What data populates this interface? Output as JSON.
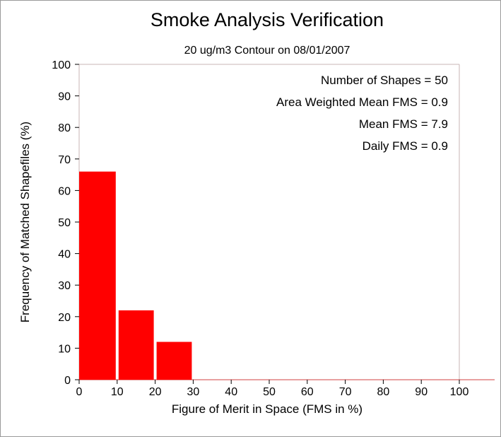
{
  "chart_data": {
    "type": "bar",
    "title": "Smoke Analysis Verification",
    "subtitle": "20 ug/m3 Contour on 08/01/2007",
    "xlabel": "Figure of Merit in Space (FMS in %)",
    "ylabel": "Frequency of Matched Shapefiles (%)",
    "xlim": [
      0,
      100
    ],
    "ylim": [
      0,
      100
    ],
    "x_ticks": [
      "0",
      "10",
      "20",
      "30",
      "40",
      "50",
      "60",
      "70",
      "80",
      "90",
      "100"
    ],
    "y_ticks": [
      "0",
      "10",
      "20",
      "30",
      "40",
      "50",
      "60",
      "70",
      "80",
      "90",
      "100"
    ],
    "bins": [
      {
        "start": 0,
        "end": 10,
        "value": 66
      },
      {
        "start": 10,
        "end": 20,
        "value": 22
      },
      {
        "start": 20,
        "end": 30,
        "value": 12
      },
      {
        "start": 30,
        "end": 40,
        "value": 0
      },
      {
        "start": 40,
        "end": 50,
        "value": 0
      },
      {
        "start": 50,
        "end": 60,
        "value": 0
      },
      {
        "start": 60,
        "end": 70,
        "value": 0
      },
      {
        "start": 70,
        "end": 80,
        "value": 0
      },
      {
        "start": 80,
        "end": 90,
        "value": 0
      },
      {
        "start": 90,
        "end": 100,
        "value": 0
      }
    ],
    "annotations": [
      "Number of Shapes = 50",
      "Area Weighted Mean FMS = 0.9",
      "Mean FMS = 7.9",
      "Daily FMS = 0.9"
    ],
    "grid": false,
    "bar_color": "#ff0000",
    "frame_color": "#c8b4b4"
  }
}
